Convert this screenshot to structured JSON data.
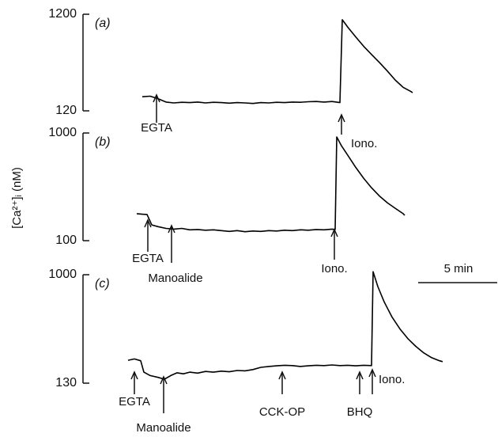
{
  "y_label": "[Ca²⁺]ᵢ (nM)",
  "scale_bar": {
    "label": "5 min",
    "value": 5
  },
  "chart_data": [
    {
      "type": "line",
      "panel_label": "(a)",
      "log_scale": true,
      "color": "#000000",
      "xlim": [
        0,
        23.5
      ],
      "ylim": [
        120,
        1200
      ],
      "yticks": [
        120,
        1200
      ],
      "x": [
        1.0,
        1.5,
        2.0,
        2.5,
        3.0,
        3.5,
        4,
        4.5,
        5,
        5.5,
        6,
        6.5,
        7,
        7.5,
        8,
        8.5,
        9,
        9.5,
        10,
        10.5,
        11,
        11.5,
        12,
        12.5,
        13,
        13.5,
        13.65,
        14,
        14.5,
        15,
        15.5,
        16,
        16.5,
        17,
        17.5,
        18,
        18.1
      ],
      "values": [
        168,
        170,
        160,
        148,
        145,
        147,
        146,
        148,
        145,
        147,
        146,
        144,
        146,
        145,
        143,
        146,
        145,
        147,
        146,
        148,
        147,
        149,
        150,
        148,
        150,
        146,
        1054,
        880,
        700,
        560,
        460,
        380,
        310,
        250,
        210,
        190,
        185
      ],
      "annotations": [
        {
          "label": "EGTA",
          "x": 1.9
        },
        {
          "label": "Iono.",
          "x": 13.6
        }
      ]
    },
    {
      "type": "line",
      "panel_label": "(b)",
      "log_scale": true,
      "color": "#000000",
      "xlim": [
        0,
        23.5
      ],
      "ylim": [
        100,
        1000
      ],
      "yticks": [
        100,
        1000
      ],
      "x": [
        0.65,
        1.0,
        1.3,
        1.6,
        2,
        2.5,
        3,
        3.5,
        4,
        4.5,
        5,
        5.5,
        6,
        6.5,
        7,
        7.5,
        8,
        8.5,
        9,
        9.5,
        10,
        10.5,
        11,
        11.5,
        12,
        12.5,
        13,
        13.2,
        13.3,
        13.6,
        14,
        14.5,
        15,
        15.5,
        16,
        16.5,
        17,
        17.5,
        17.6
      ],
      "values": [
        178,
        176,
        175,
        140,
        135,
        130,
        128,
        130,
        126,
        127,
        125,
        126,
        124,
        122,
        124,
        121,
        123,
        122,
        124,
        123,
        125,
        124,
        126,
        125,
        127,
        126,
        128,
        127,
        919,
        760,
        620,
        480,
        380,
        310,
        260,
        225,
        200,
        178,
        172
      ],
      "annotations": [
        {
          "label": "EGTA",
          "x": 1.35
        },
        {
          "label": "Manoalide",
          "x": 2.85
        },
        {
          "label": "Iono.",
          "x": 13.15
        }
      ]
    },
    {
      "type": "line",
      "panel_label": "(c)",
      "log_scale": true,
      "color": "#000000",
      "xlim": [
        0,
        23.5
      ],
      "ylim": [
        130,
        1000
      ],
      "yticks": [
        130,
        1000
      ],
      "x": [
        0.1,
        0.5,
        0.9,
        1.1,
        1.5,
        2,
        2.4,
        2.8,
        3.2,
        3.6,
        4,
        4.5,
        5,
        5.5,
        6,
        6.5,
        7,
        7.5,
        8,
        8.5,
        9,
        9.5,
        10,
        10.5,
        11,
        11.5,
        12,
        12.5,
        13,
        13.5,
        14,
        14.5,
        15,
        15.5,
        15.6,
        15.9,
        16.3,
        16.8,
        17.3,
        17.8,
        18.3,
        18.8,
        19.3,
        19.8,
        20
      ],
      "values": [
        200,
        205,
        198,
        160,
        150,
        145,
        140,
        150,
        158,
        155,
        160,
        157,
        162,
        160,
        163,
        161,
        165,
        164,
        168,
        175,
        178,
        180,
        182,
        181,
        178,
        180,
        182,
        181,
        183,
        181,
        182,
        180,
        182,
        181,
        1058,
        800,
        600,
        450,
        360,
        300,
        260,
        230,
        210,
        198,
        195
      ],
      "annotations": [
        {
          "label": "EGTA",
          "x": 0.5
        },
        {
          "label": "Manoalide",
          "x": 2.35
        },
        {
          "label": "CCK-OP",
          "x": 9.85
        },
        {
          "label": "BHQ",
          "x": 14.75
        },
        {
          "label": "Iono.",
          "x": 15.55
        }
      ]
    }
  ]
}
